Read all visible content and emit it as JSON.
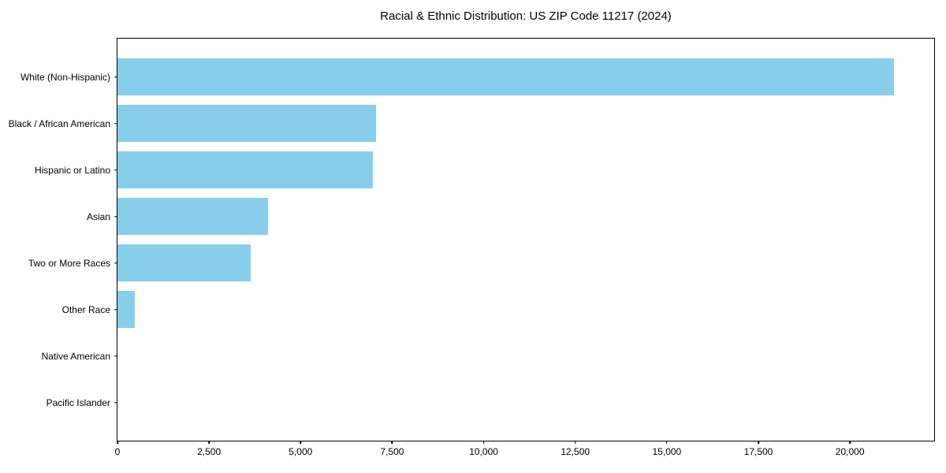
{
  "chart_data": {
    "type": "bar",
    "orientation": "horizontal",
    "title": "Racial & Ethnic Distribution: US ZIP Code 11217 (2024)",
    "categories": [
      "White (Non-Hispanic)",
      "Black / African American",
      "Hispanic or Latino",
      "Asian",
      "Two or More Races",
      "Other Race",
      "Native American",
      "Pacific Islander"
    ],
    "values": [
      21200,
      7050,
      6970,
      4110,
      3640,
      465,
      0,
      0
    ],
    "xlabel": "",
    "ylabel": "",
    "xlim": [
      0,
      22300
    ],
    "x_ticks": [
      {
        "value": 0,
        "label": "0"
      },
      {
        "value": 2500,
        "label": "2,500"
      },
      {
        "value": 5000,
        "label": "5,000"
      },
      {
        "value": 7500,
        "label": "7,500"
      },
      {
        "value": 10000,
        "label": "10,000"
      },
      {
        "value": 12500,
        "label": "12,500"
      },
      {
        "value": 15000,
        "label": "15,000"
      },
      {
        "value": 17500,
        "label": "17,500"
      },
      {
        "value": 20000,
        "label": "20,000"
      }
    ],
    "bar_color": "#87CEEB",
    "spine_color": "#000000",
    "background_color": "#ffffff",
    "grid": false,
    "legend": null
  }
}
